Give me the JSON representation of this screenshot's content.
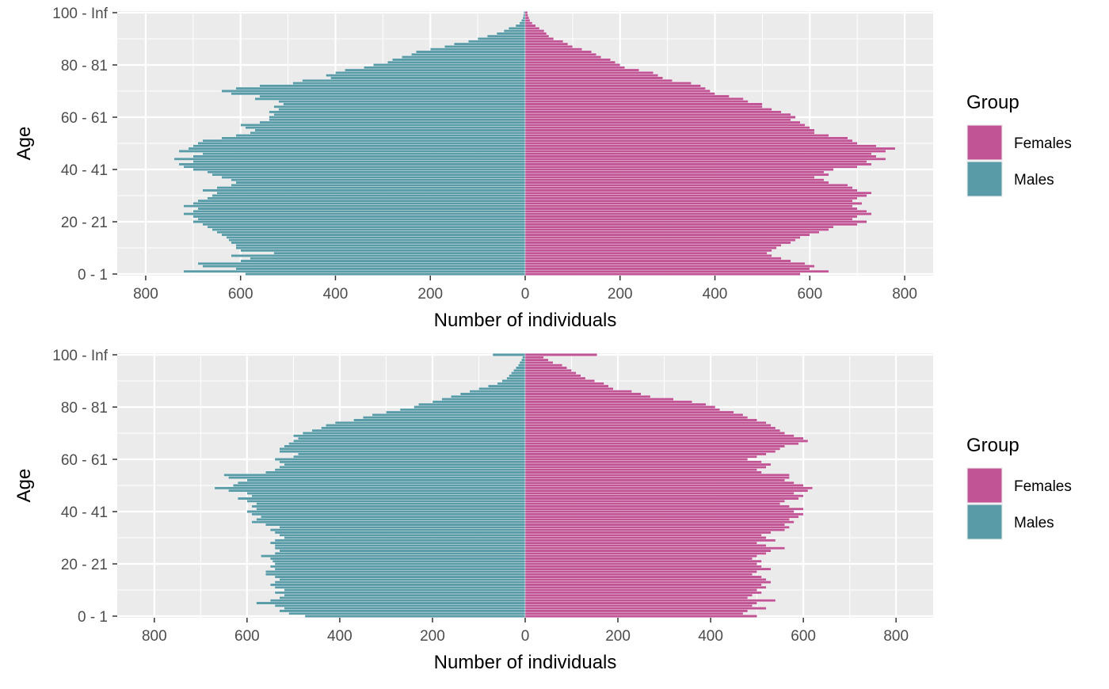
{
  "chart_data": [
    {
      "type": "bar",
      "orientation": "horizontal",
      "layout": "population-pyramid",
      "xlabel": "Number of individuals",
      "ylabel": "Age",
      "xlim": [
        -860,
        860
      ],
      "x_ticks": [
        -800,
        -600,
        -400,
        -200,
        0,
        200,
        400,
        600,
        800
      ],
      "x_tick_labels": [
        "800",
        "600",
        "400",
        "200",
        "0",
        "200",
        "400",
        "600",
        "800"
      ],
      "y_tick_labels": [
        "0 - 1",
        "20 - 21",
        "40 - 41",
        "60 - 61",
        "80 - 81",
        "100 - Inf"
      ],
      "y_tick_positions": [
        0,
        20,
        40,
        60,
        80,
        100
      ],
      "grid": true,
      "legend": {
        "title": "Group",
        "position": "right",
        "entries": [
          "Females",
          "Males"
        ]
      },
      "age_groups_count": 101,
      "series": [
        {
          "name": "Males",
          "color": "#5A9BA8",
          "age_knots": [
            0,
            1,
            2,
            3,
            4,
            5,
            6,
            7,
            8,
            9,
            10,
            11,
            12,
            13,
            14,
            15,
            16,
            17,
            18,
            19,
            20,
            21,
            22,
            23,
            24,
            25,
            26,
            27,
            28,
            29,
            30,
            31,
            32,
            33,
            34,
            35,
            36,
            37,
            38,
            39,
            40,
            41,
            42,
            43,
            44,
            45,
            46,
            47,
            48,
            49,
            50,
            51,
            52,
            53,
            54,
            55,
            56,
            57,
            58,
            59,
            60,
            61,
            62,
            63,
            64,
            65,
            66,
            67,
            68,
            69,
            70,
            71,
            72,
            73,
            74,
            75,
            76,
            77,
            78,
            79,
            80,
            81,
            82,
            83,
            84,
            85,
            86,
            87,
            88,
            89,
            90,
            91,
            92,
            93,
            94,
            95,
            96,
            97,
            98,
            99,
            100
          ],
          "values": [
            590,
            720,
            610,
            680,
            690,
            600,
            580,
            620,
            530,
            600,
            610,
            610,
            620,
            625,
            630,
            640,
            650,
            660,
            670,
            680,
            700,
            690,
            700,
            720,
            700,
            690,
            720,
            700,
            690,
            670,
            660,
            650,
            680,
            650,
            620,
            610,
            620,
            640,
            660,
            670,
            700,
            720,
            730,
            700,
            740,
            700,
            680,
            730,
            710,
            700,
            690,
            680,
            640,
            610,
            580,
            570,
            590,
            600,
            560,
            540,
            540,
            530,
            540,
            520,
            530,
            510,
            520,
            570,
            560,
            620,
            640,
            610,
            560,
            490,
            470,
            410,
            420,
            400,
            380,
            340,
            320,
            290,
            280,
            260,
            240,
            230,
            200,
            170,
            150,
            120,
            100,
            80,
            60,
            45,
            35,
            20,
            12,
            8,
            5,
            4,
            3
          ]
        },
        {
          "name": "Females",
          "color": "#C05494",
          "age_knots": [
            0,
            1,
            2,
            3,
            4,
            5,
            6,
            7,
            8,
            9,
            10,
            11,
            12,
            13,
            14,
            15,
            16,
            17,
            18,
            19,
            20,
            21,
            22,
            23,
            24,
            25,
            26,
            27,
            28,
            29,
            30,
            31,
            32,
            33,
            34,
            35,
            36,
            37,
            38,
            39,
            40,
            41,
            42,
            43,
            44,
            45,
            46,
            47,
            48,
            49,
            50,
            51,
            52,
            53,
            54,
            55,
            56,
            57,
            58,
            59,
            60,
            61,
            62,
            63,
            64,
            65,
            66,
            67,
            68,
            69,
            70,
            71,
            72,
            73,
            74,
            75,
            76,
            77,
            78,
            79,
            80,
            81,
            82,
            83,
            84,
            85,
            86,
            87,
            88,
            89,
            90,
            91,
            92,
            93,
            94,
            95,
            96,
            97,
            98,
            99,
            100
          ],
          "values": [
            580,
            640,
            600,
            610,
            590,
            560,
            540,
            520,
            510,
            520,
            530,
            540,
            560,
            570,
            580,
            600,
            620,
            640,
            650,
            700,
            720,
            690,
            700,
            730,
            720,
            700,
            690,
            710,
            690,
            700,
            720,
            730,
            700,
            690,
            680,
            640,
            630,
            610,
            640,
            630,
            650,
            700,
            730,
            720,
            760,
            740,
            730,
            760,
            780,
            740,
            700,
            690,
            680,
            640,
            610,
            610,
            600,
            590,
            580,
            560,
            570,
            560,
            540,
            520,
            500,
            500,
            470,
            460,
            430,
            400,
            390,
            380,
            370,
            350,
            310,
            290,
            280,
            270,
            240,
            210,
            200,
            190,
            180,
            160,
            150,
            140,
            120,
            100,
            90,
            80,
            60,
            50,
            45,
            40,
            30,
            22,
            15,
            10,
            8,
            6,
            5
          ]
        }
      ]
    },
    {
      "type": "bar",
      "orientation": "horizontal",
      "layout": "population-pyramid",
      "xlabel": "Number of individuals",
      "ylabel": "Age",
      "xlim": [
        -880,
        880
      ],
      "x_ticks": [
        -800,
        -600,
        -400,
        -200,
        0,
        200,
        400,
        600,
        800
      ],
      "x_tick_labels": [
        "800",
        "600",
        "400",
        "200",
        "0",
        "200",
        "400",
        "600",
        "800"
      ],
      "y_tick_labels": [
        "0 - 1",
        "20 - 21",
        "40 - 41",
        "60 - 61",
        "80 - 81",
        "100 - Inf"
      ],
      "y_tick_positions": [
        0,
        20,
        40,
        60,
        80,
        100
      ],
      "grid": true,
      "legend": {
        "title": "Group",
        "position": "right",
        "entries": [
          "Females",
          "Males"
        ]
      },
      "age_groups_count": 101,
      "series": [
        {
          "name": "Males",
          "color": "#5A9BA8",
          "age_knots": [
            0,
            1,
            2,
            3,
            4,
            5,
            6,
            7,
            8,
            9,
            10,
            11,
            12,
            13,
            14,
            15,
            16,
            17,
            18,
            19,
            20,
            21,
            22,
            23,
            24,
            25,
            26,
            27,
            28,
            29,
            30,
            31,
            32,
            33,
            34,
            35,
            36,
            37,
            38,
            39,
            40,
            41,
            42,
            43,
            44,
            45,
            46,
            47,
            48,
            49,
            50,
            51,
            52,
            53,
            54,
            55,
            56,
            57,
            58,
            59,
            60,
            61,
            62,
            63,
            64,
            65,
            66,
            67,
            68,
            69,
            70,
            71,
            72,
            73,
            74,
            75,
            76,
            77,
            78,
            79,
            80,
            81,
            82,
            83,
            84,
            85,
            86,
            87,
            88,
            89,
            90,
            91,
            92,
            93,
            94,
            95,
            96,
            97,
            98,
            99,
            100
          ],
          "values": [
            475,
            510,
            530,
            520,
            540,
            580,
            550,
            530,
            520,
            540,
            520,
            540,
            550,
            540,
            530,
            540,
            560,
            560,
            540,
            550,
            540,
            545,
            550,
            570,
            540,
            530,
            540,
            540,
            550,
            540,
            520,
            530,
            540,
            550,
            530,
            560,
            590,
            580,
            570,
            590,
            600,
            580,
            590,
            580,
            600,
            620,
            590,
            600,
            640,
            670,
            630,
            620,
            600,
            640,
            650,
            560,
            540,
            530,
            520,
            530,
            540,
            500,
            490,
            530,
            530,
            520,
            510,
            500,
            490,
            500,
            480,
            460,
            440,
            430,
            410,
            370,
            350,
            330,
            300,
            270,
            240,
            230,
            200,
            180,
            160,
            140,
            120,
            100,
            80,
            60,
            50,
            40,
            35,
            30,
            25,
            20,
            15,
            12,
            8,
            6,
            70
          ]
        },
        {
          "name": "Females",
          "color": "#C05494",
          "age_knots": [
            0,
            1,
            2,
            3,
            4,
            5,
            6,
            7,
            8,
            9,
            10,
            11,
            12,
            13,
            14,
            15,
            16,
            17,
            18,
            19,
            20,
            21,
            22,
            23,
            24,
            25,
            26,
            27,
            28,
            29,
            30,
            31,
            32,
            33,
            34,
            35,
            36,
            37,
            38,
            39,
            40,
            41,
            42,
            43,
            44,
            45,
            46,
            47,
            48,
            49,
            50,
            51,
            52,
            53,
            54,
            55,
            56,
            57,
            58,
            59,
            60,
            61,
            62,
            63,
            64,
            65,
            66,
            67,
            68,
            69,
            70,
            71,
            72,
            73,
            74,
            75,
            76,
            77,
            78,
            79,
            80,
            81,
            82,
            83,
            84,
            85,
            86,
            87,
            88,
            89,
            90,
            91,
            92,
            93,
            94,
            95,
            96,
            97,
            98,
            99,
            100
          ],
          "values": [
            500,
            470,
            480,
            520,
            490,
            500,
            540,
            480,
            490,
            510,
            500,
            520,
            510,
            530,
            520,
            510,
            490,
            500,
            530,
            510,
            500,
            510,
            490,
            500,
            520,
            530,
            560,
            520,
            500,
            540,
            520,
            510,
            530,
            560,
            570,
            560,
            580,
            570,
            590,
            600,
            580,
            600,
            570,
            550,
            560,
            590,
            600,
            580,
            610,
            620,
            600,
            580,
            560,
            570,
            570,
            510,
            500,
            520,
            530,
            510,
            480,
            500,
            520,
            540,
            550,
            560,
            590,
            610,
            600,
            580,
            560,
            550,
            540,
            530,
            520,
            500,
            480,
            470,
            450,
            420,
            410,
            390,
            360,
            320,
            270,
            250,
            230,
            190,
            180,
            170,
            150,
            130,
            120,
            110,
            100,
            90,
            80,
            60,
            50,
            40,
            155
          ]
        }
      ]
    }
  ]
}
